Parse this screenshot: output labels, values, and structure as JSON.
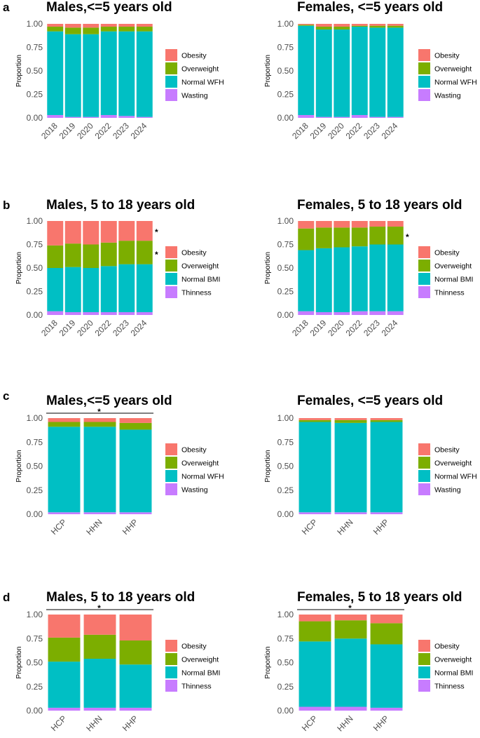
{
  "colors": {
    "Obesity": "#F8766D",
    "Overweight": "#7CAE00",
    "Normal": "#00BFC4",
    "Thin": "#C77CFF"
  },
  "chart_data": [
    {
      "type": "bar",
      "stacked": true,
      "panel": "a",
      "title": "Males,<=5 years old",
      "ylabel": "Proportion",
      "ylim": [
        0,
        1
      ],
      "yticks": [
        "0.00",
        "0.25",
        "0.50",
        "0.75",
        "1.00"
      ],
      "categories": [
        "2018",
        "2019",
        "2020",
        "2022",
        "2023",
        "2024"
      ],
      "legend": [
        "Obesity",
        "Overweight",
        "Normal WFH",
        "Wasting"
      ],
      "series": [
        {
          "name": "Wasting",
          "values": [
            0.03,
            0.01,
            0.01,
            0.03,
            0.02,
            0.01
          ]
        },
        {
          "name": "Normal WFH",
          "values": [
            0.89,
            0.88,
            0.88,
            0.89,
            0.9,
            0.91
          ]
        },
        {
          "name": "Overweight",
          "values": [
            0.05,
            0.07,
            0.07,
            0.05,
            0.05,
            0.05
          ]
        },
        {
          "name": "Obesity",
          "values": [
            0.03,
            0.04,
            0.04,
            0.03,
            0.03,
            0.03
          ]
        }
      ],
      "year_stars": [],
      "bracket": false
    },
    {
      "type": "bar",
      "stacked": true,
      "panel": "",
      "title": "Females, <=5 years old",
      "ylabel": "Proportion",
      "ylim": [
        0,
        1
      ],
      "yticks": [
        "0.00",
        "0.25",
        "0.50",
        "0.75",
        "1.00"
      ],
      "categories": [
        "2018",
        "2019",
        "2020",
        "2022",
        "2023",
        "2024"
      ],
      "legend": [
        "Obesity",
        "Overweight",
        "Normal WFH",
        "Wasting"
      ],
      "series": [
        {
          "name": "Wasting",
          "values": [
            0.03,
            0.01,
            0.01,
            0.03,
            0.01,
            0.01
          ]
        },
        {
          "name": "Normal WFH",
          "values": [
            0.95,
            0.93,
            0.93,
            0.94,
            0.95,
            0.95
          ]
        },
        {
          "name": "Overweight",
          "values": [
            0.01,
            0.03,
            0.03,
            0.01,
            0.02,
            0.02
          ]
        },
        {
          "name": "Obesity",
          "values": [
            0.01,
            0.03,
            0.03,
            0.02,
            0.02,
            0.02
          ]
        }
      ],
      "year_stars": [],
      "bracket": false
    },
    {
      "type": "bar",
      "stacked": true,
      "panel": "b",
      "title": "Males, 5 to 18 years old",
      "ylabel": "Proportion",
      "ylim": [
        0,
        1
      ],
      "yticks": [
        "0.00",
        "0.25",
        "0.50",
        "0.75",
        "1.00"
      ],
      "categories": [
        "2018",
        "2019",
        "2020",
        "2022",
        "2023",
        "2024"
      ],
      "legend": [
        "Obesity",
        "Overweight",
        "Normal BMI",
        "Thinness"
      ],
      "series": [
        {
          "name": "Thinness",
          "values": [
            0.04,
            0.03,
            0.03,
            0.03,
            0.03,
            0.03
          ]
        },
        {
          "name": "Normal BMI",
          "values": [
            0.46,
            0.48,
            0.47,
            0.49,
            0.51,
            0.51
          ]
        },
        {
          "name": "Overweight",
          "values": [
            0.24,
            0.25,
            0.25,
            0.25,
            0.25,
            0.25
          ]
        },
        {
          "name": "Obesity",
          "values": [
            0.26,
            0.24,
            0.25,
            0.23,
            0.21,
            0.21
          ]
        }
      ],
      "year_stars": [
        {
          "label": "*",
          "value": 0.88
        },
        {
          "label": "*",
          "value": 0.64
        }
      ],
      "bracket": false
    },
    {
      "type": "bar",
      "stacked": true,
      "panel": "",
      "title": "Females, 5 to 18 years old",
      "ylabel": "Proportion",
      "ylim": [
        0,
        1
      ],
      "yticks": [
        "0.00",
        "0.25",
        "0.50",
        "0.75",
        "1.00"
      ],
      "categories": [
        "2018",
        "2019",
        "2020",
        "2022",
        "2023",
        "2024"
      ],
      "legend": [
        "Obesity",
        "Overweight",
        "Normal BMI",
        "Thinness"
      ],
      "series": [
        {
          "name": "Thinness",
          "values": [
            0.04,
            0.03,
            0.03,
            0.04,
            0.04,
            0.04
          ]
        },
        {
          "name": "Normal BMI",
          "values": [
            0.65,
            0.68,
            0.69,
            0.69,
            0.71,
            0.71
          ]
        },
        {
          "name": "Overweight",
          "values": [
            0.23,
            0.22,
            0.21,
            0.2,
            0.19,
            0.19
          ]
        },
        {
          "name": "Obesity",
          "values": [
            0.08,
            0.07,
            0.07,
            0.07,
            0.06,
            0.06
          ]
        }
      ],
      "year_stars": [
        {
          "label": "*",
          "value": 0.83
        }
      ],
      "bracket": false
    },
    {
      "type": "bar",
      "stacked": true,
      "panel": "c",
      "title": "Males,<=5 years old",
      "ylabel": "Proportion",
      "ylim": [
        0,
        1
      ],
      "yticks": [
        "0.00",
        "0.25",
        "0.50",
        "0.75",
        "1.00"
      ],
      "categories": [
        "HCP",
        "HHN",
        "HHP"
      ],
      "legend": [
        "Obesity",
        "Overweight",
        "Normal WFH",
        "Wasting"
      ],
      "series": [
        {
          "name": "Wasting",
          "values": [
            0.02,
            0.02,
            0.02
          ]
        },
        {
          "name": "Normal WFH",
          "values": [
            0.89,
            0.89,
            0.86
          ]
        },
        {
          "name": "Overweight",
          "values": [
            0.05,
            0.05,
            0.07
          ]
        },
        {
          "name": "Obesity",
          "values": [
            0.04,
            0.04,
            0.05
          ]
        }
      ],
      "year_stars": [],
      "bracket": true,
      "bracket_label": "*"
    },
    {
      "type": "bar",
      "stacked": true,
      "panel": "",
      "title": "Females, <=5 years old",
      "ylabel": "Proportion",
      "ylim": [
        0,
        1
      ],
      "yticks": [
        "0.00",
        "0.25",
        "0.50",
        "0.75",
        "1.00"
      ],
      "categories": [
        "HCP",
        "HHN",
        "HHP"
      ],
      "legend": [
        "Obesity",
        "Overweight",
        "Normal WFH",
        "Wasting"
      ],
      "series": [
        {
          "name": "Wasting",
          "values": [
            0.02,
            0.02,
            0.02
          ]
        },
        {
          "name": "Normal WFH",
          "values": [
            0.94,
            0.93,
            0.94
          ]
        },
        {
          "name": "Overweight",
          "values": [
            0.02,
            0.03,
            0.02
          ]
        },
        {
          "name": "Obesity",
          "values": [
            0.02,
            0.02,
            0.02
          ]
        }
      ],
      "year_stars": [],
      "bracket": false
    },
    {
      "type": "bar",
      "stacked": true,
      "panel": "d",
      "title": "Males, 5 to 18 years old",
      "ylabel": "Proportion",
      "ylim": [
        0,
        1
      ],
      "yticks": [
        "0.00",
        "0.25",
        "0.50",
        "0.75",
        "1.00"
      ],
      "categories": [
        "HCP",
        "HHN",
        "HHP"
      ],
      "legend": [
        "Obesity",
        "Overweight",
        "Normal BMI",
        "Thinness"
      ],
      "series": [
        {
          "name": "Thinness",
          "values": [
            0.03,
            0.03,
            0.03
          ]
        },
        {
          "name": "Normal BMI",
          "values": [
            0.48,
            0.51,
            0.45
          ]
        },
        {
          "name": "Overweight",
          "values": [
            0.25,
            0.25,
            0.25
          ]
        },
        {
          "name": "Obesity",
          "values": [
            0.24,
            0.21,
            0.27
          ]
        }
      ],
      "year_stars": [],
      "bracket": true,
      "bracket_label": "*"
    },
    {
      "type": "bar",
      "stacked": true,
      "panel": "",
      "title": "Females, 5 to 18 years old",
      "ylabel": "Proportion",
      "ylim": [
        0,
        1
      ],
      "yticks": [
        "0.00",
        "0.25",
        "0.50",
        "0.75",
        "1.00"
      ],
      "categories": [
        "HCP",
        "HHN",
        "HHP"
      ],
      "legend": [
        "Obesity",
        "Overweight",
        "Normal BMI",
        "Thinness"
      ],
      "series": [
        {
          "name": "Thinness",
          "values": [
            0.04,
            0.04,
            0.03
          ]
        },
        {
          "name": "Normal BMI",
          "values": [
            0.68,
            0.71,
            0.66
          ]
        },
        {
          "name": "Overweight",
          "values": [
            0.21,
            0.19,
            0.22
          ]
        },
        {
          "name": "Obesity",
          "values": [
            0.07,
            0.06,
            0.09
          ]
        }
      ],
      "year_stars": [],
      "bracket": true,
      "bracket_label": "*"
    }
  ]
}
